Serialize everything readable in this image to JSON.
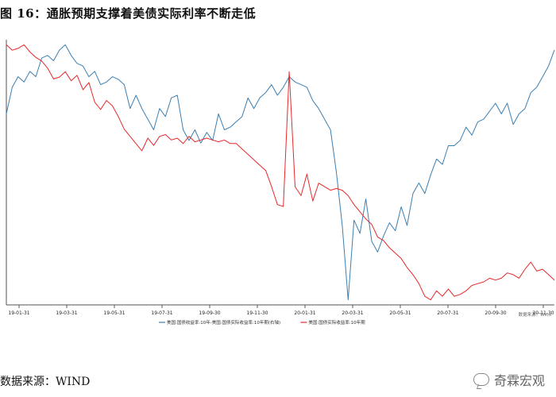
{
  "figure": {
    "title": "图 16：通胀预期支撑着美债实际利率不断走低",
    "source": "数据来源：WIND",
    "watermark": "奇霖宏观"
  },
  "chart_data": {
    "type": "line",
    "x_ticks": [
      "19-01-31",
      "19-03-31",
      "19-05-31",
      "19-07-31",
      "19-09-30",
      "19-11-30",
      "20-01-31",
      "20-03-31",
      "20-05-31",
      "20-07-31",
      "20-09-30",
      "20-11-30"
    ],
    "legend": [
      "美国:国债收益率:10年-美国:国债实际收益率:10年期(右轴)",
      "美国:国债实际收益率:10年期"
    ],
    "legend_position": "bottom",
    "legend_note": "数据来源：Wind",
    "grid": false,
    "series": [
      {
        "name": "美国:国债收益率:10年-美国:国债实际收益率:10年期(右轴)",
        "color": "#3c7fb1",
        "values": [
          0.72,
          0.82,
          0.86,
          0.84,
          0.88,
          0.86,
          0.93,
          0.94,
          0.92,
          0.96,
          0.98,
          0.94,
          0.91,
          0.9,
          0.86,
          0.88,
          0.83,
          0.84,
          0.86,
          0.85,
          0.83,
          0.74,
          0.79,
          0.74,
          0.7,
          0.66,
          0.74,
          0.71,
          0.78,
          0.79,
          0.66,
          0.62,
          0.66,
          0.61,
          0.65,
          0.62,
          0.72,
          0.66,
          0.67,
          0.69,
          0.71,
          0.78,
          0.74,
          0.78,
          0.8,
          0.83,
          0.79,
          0.82,
          0.86,
          0.84,
          0.83,
          0.82,
          0.77,
          0.74,
          0.7,
          0.66,
          0.5,
          0.3,
          0.02,
          0.32,
          0.27,
          0.4,
          0.24,
          0.2,
          0.26,
          0.31,
          0.28,
          0.37,
          0.3,
          0.42,
          0.46,
          0.42,
          0.49,
          0.55,
          0.53,
          0.6,
          0.6,
          0.62,
          0.67,
          0.64,
          0.69,
          0.7,
          0.73,
          0.76,
          0.72,
          0.76,
          0.68,
          0.72,
          0.74,
          0.8,
          0.82,
          0.86,
          0.9,
          0.96
        ]
      },
      {
        "name": "美国:国债实际收益率:10年期",
        "color": "#e8282b",
        "values": [
          0.97,
          0.94,
          0.95,
          0.97,
          0.93,
          0.9,
          0.88,
          0.84,
          0.78,
          0.79,
          0.82,
          0.77,
          0.8,
          0.72,
          0.76,
          0.65,
          0.61,
          0.66,
          0.63,
          0.57,
          0.5,
          0.46,
          0.42,
          0.38,
          0.45,
          0.41,
          0.46,
          0.47,
          0.44,
          0.45,
          0.42,
          0.46,
          0.43,
          0.44,
          0.45,
          0.44,
          0.43,
          0.44,
          0.42,
          0.42,
          0.39,
          0.36,
          0.33,
          0.3,
          0.27,
          0.18,
          0.08,
          0.07,
          0.82,
          0.18,
          0.13,
          0.25,
          0.1,
          0.2,
          0.18,
          0.16,
          0.17,
          0.16,
          0.13,
          0.08,
          0.04,
          0.0,
          -0.03,
          -0.1,
          -0.12,
          -0.16,
          -0.19,
          -0.22,
          -0.27,
          -0.31,
          -0.36,
          -0.43,
          -0.45,
          -0.4,
          -0.43,
          -0.39,
          -0.43,
          -0.42,
          -0.4,
          -0.37,
          -0.36,
          -0.35,
          -0.33,
          -0.34,
          -0.33,
          -0.3,
          -0.31,
          -0.33,
          -0.28,
          -0.24,
          -0.29,
          -0.28,
          -0.31,
          -0.34
        ]
      }
    ]
  }
}
